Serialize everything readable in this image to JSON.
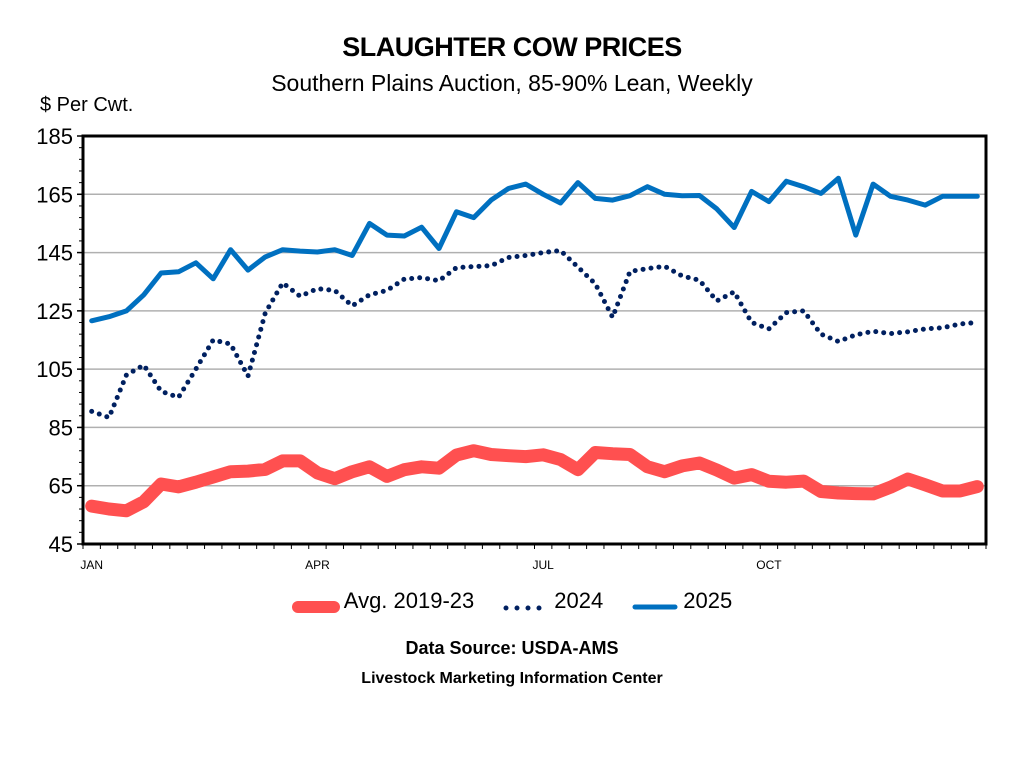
{
  "chart_data": {
    "type": "line",
    "title": "SLAUGHTER COW PRICES",
    "subtitle": "Southern Plains Auction, 85-90% Lean, Weekly",
    "ylabel": "$ Per Cwt.",
    "xlabel": "",
    "ylim": [
      45,
      185
    ],
    "yticks": [
      45,
      65,
      85,
      105,
      125,
      145,
      165,
      185
    ],
    "x_count": 52,
    "xtick_labels": [
      {
        "index": 0,
        "label": "JAN"
      },
      {
        "index": 13,
        "label": "APR"
      },
      {
        "index": 26,
        "label": "JUL"
      },
      {
        "index": 39,
        "label": "OCT"
      }
    ],
    "grid": true,
    "legend_position": "bottom",
    "series": [
      {
        "name": "Avg. 2019-23",
        "color": "#FF5050",
        "style": "solid-thick",
        "values": [
          58,
          57,
          56.4,
          59.5,
          65.6,
          64.6,
          66.2,
          68,
          69.8,
          70,
          70.6,
          73.5,
          73.5,
          69.4,
          67.4,
          69.8,
          71.5,
          68.2,
          70.5,
          71.5,
          71,
          75.5,
          77,
          75.7,
          75.3,
          75,
          75.6,
          74,
          70.5,
          76.4,
          76,
          75.7,
          71.5,
          69.8,
          71.8,
          72.8,
          70.4,
          67.6,
          68.8,
          66.5,
          66.2,
          66.6,
          63,
          62.5,
          62.3,
          62.2,
          64.5,
          67.3,
          65.3,
          63.2,
          63.2,
          64.7
        ]
      },
      {
        "name": "2024",
        "color": "#002060",
        "style": "dotted",
        "values": [
          90.5,
          88.4,
          103,
          106.4,
          97.4,
          95.3,
          105,
          115,
          113.6,
          102.6,
          124.3,
          134.6,
          130,
          132.6,
          132,
          126.7,
          130.5,
          132,
          135.9,
          136.4,
          135.3,
          139.8,
          140.2,
          140.5,
          143.3,
          144,
          145,
          145.7,
          140,
          134.3,
          122.8,
          138.5,
          139.5,
          140.3,
          137,
          135.5,
          128.4,
          131.5,
          121,
          118.8,
          124.4,
          125,
          117,
          114.5,
          116.8,
          118,
          117.2,
          117.8,
          118.8,
          119.2,
          120.5,
          121
        ]
      },
      {
        "name": "2025",
        "color": "#0070C0",
        "style": "solid",
        "values": [
          121.6,
          123,
          125,
          130.5,
          138,
          138.4,
          141.5,
          136,
          146,
          139,
          143.5,
          146,
          145.5,
          145.2,
          146,
          144,
          155,
          151,
          150.7,
          153.7,
          146.4,
          159,
          157,
          163,
          167,
          168.5,
          165,
          162,
          169,
          163.6,
          163,
          164.5,
          167.6,
          165,
          164.5,
          164.6,
          160,
          153.6,
          166,
          162.5,
          169.5,
          167.6,
          165.3,
          170.5,
          151,
          168.5,
          164.3,
          163,
          161.3,
          164.3,
          164.3,
          164.3
        ]
      }
    ]
  },
  "footer": {
    "source": "Data Source:  USDA-AMS",
    "organization": "Livestock Marketing Information Center"
  }
}
